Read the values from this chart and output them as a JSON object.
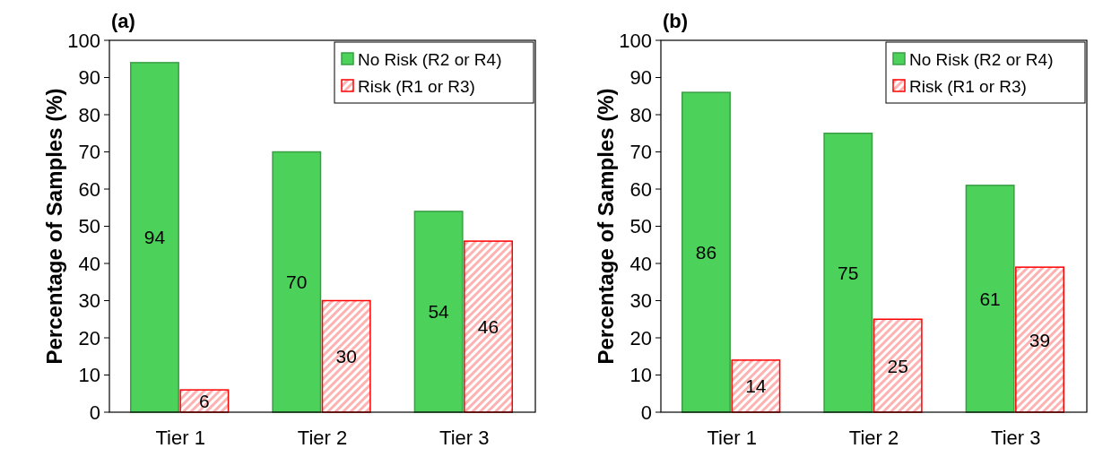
{
  "chart_data": [
    {
      "type": "bar",
      "title": "(a)",
      "ylabel": "Percentage of Samples (%)",
      "categories": [
        "Tier 1",
        "Tier 2",
        "Tier 3"
      ],
      "series": [
        {
          "name": "No Risk (R2 or R4)",
          "color": "#4cd25a",
          "values": [
            94,
            70,
            54
          ]
        },
        {
          "name": "Risk (R1 or R3)",
          "color": "#ff0000",
          "values": [
            6,
            30,
            46
          ]
        }
      ],
      "ylim": [
        0,
        100
      ],
      "yticks": [
        0,
        10,
        20,
        30,
        40,
        50,
        60,
        70,
        80,
        90,
        100
      ],
      "data_labels": true,
      "legend": "top right",
      "grid": false
    },
    {
      "type": "bar",
      "title": "(b)",
      "ylabel": "Percentage of Samples (%)",
      "categories": [
        "Tier 1",
        "Tier 2",
        "Tier 3"
      ],
      "series": [
        {
          "name": "No Risk (R2 or R4)",
          "color": "#4cd25a",
          "values": [
            86,
            75,
            61
          ]
        },
        {
          "name": "Risk (R1 or R3)",
          "color": "#ff0000",
          "values": [
            14,
            25,
            39
          ]
        }
      ],
      "ylim": [
        0,
        100
      ],
      "yticks": [
        0,
        10,
        20,
        30,
        40,
        50,
        60,
        70,
        80,
        90,
        100
      ],
      "data_labels": true,
      "legend": "top right",
      "grid": false
    }
  ]
}
